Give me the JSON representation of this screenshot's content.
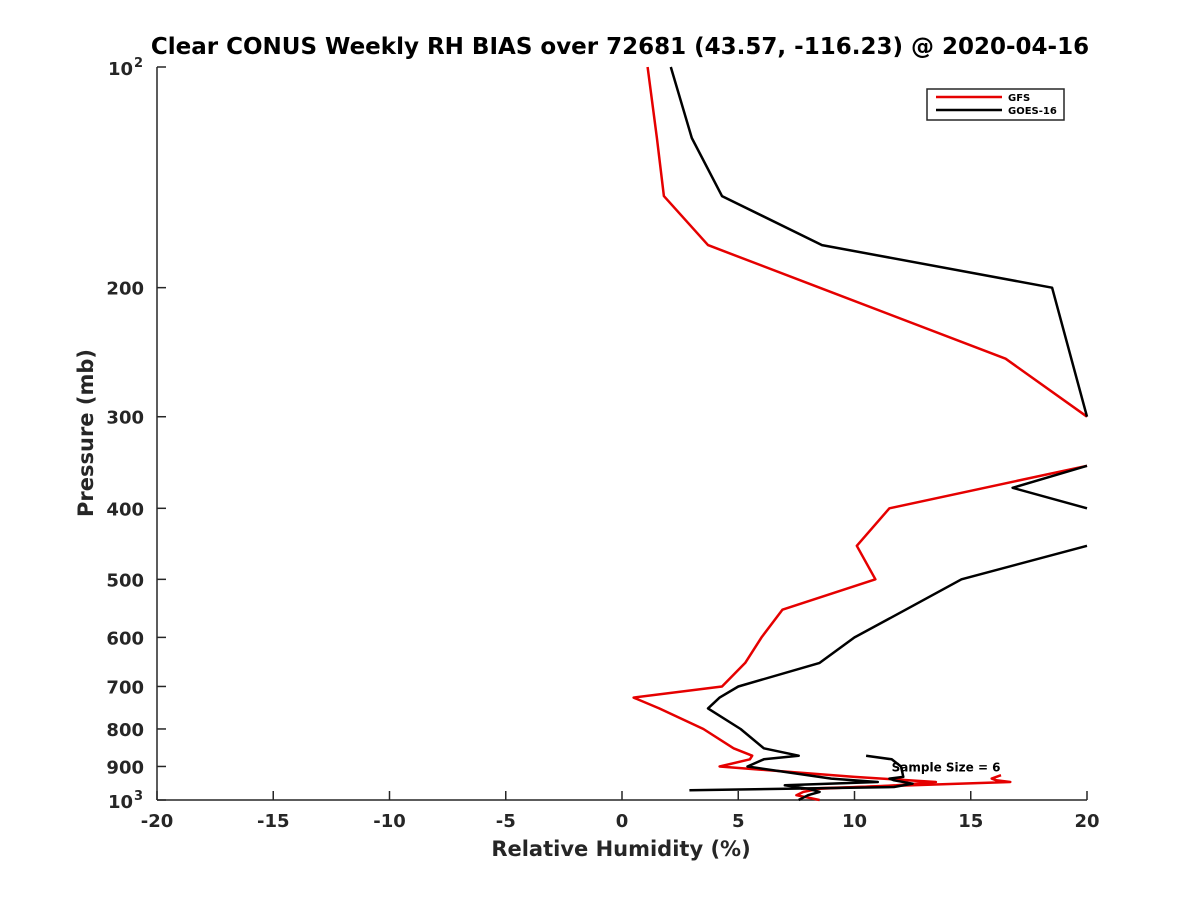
{
  "chart_data": {
    "type": "line",
    "title": "Clear CONUS Weekly RH BIAS over 72681 (43.57, -116.23) @ 2020-04-16",
    "xlabel": "Relative Humidity (%)",
    "ylabel": "Pressure (mb)",
    "xlim": [
      -20,
      20
    ],
    "ylim": [
      100,
      1000
    ],
    "y_scale": "log",
    "y_reversed": true,
    "grid": false,
    "legend_position": "top-right",
    "x_ticks": [
      "-20",
      "-15",
      "-10",
      "-5",
      "0",
      "5",
      "10",
      "15",
      "20"
    ],
    "y_ticks": [
      {
        "base": "10",
        "exp": "2",
        "value": 100
      },
      {
        "base": "200",
        "exp": "",
        "value": 200
      },
      {
        "base": "300",
        "exp": "",
        "value": 300
      },
      {
        "base": "400",
        "exp": "",
        "value": 400
      },
      {
        "base": "500",
        "exp": "",
        "value": 500
      },
      {
        "base": "600",
        "exp": "",
        "value": 600
      },
      {
        "base": "700",
        "exp": "",
        "value": 700
      },
      {
        "base": "800",
        "exp": "",
        "value": 800
      },
      {
        "base": "900",
        "exp": "",
        "value": 900
      },
      {
        "base": "10",
        "exp": "3",
        "value": 1000
      }
    ],
    "annotation": "Sample Size = 6",
    "annotation_at": {
      "x": 12.5,
      "p": 900
    },
    "series": [
      {
        "name": "GFS",
        "color": "#e50000",
        "segments": [
          [
            [
              1.1,
              100
            ],
            [
              1.5,
              125
            ],
            [
              1.8,
              150
            ],
            [
              3.7,
              175
            ],
            [
              8.5,
              200
            ],
            [
              16.5,
              250
            ],
            [
              20,
              300
            ]
          ],
          [
            [
              20,
              350
            ],
            [
              11.5,
              400
            ],
            [
              10.1,
              450
            ],
            [
              10.9,
              500
            ],
            [
              6.9,
              550
            ],
            [
              6.0,
              600
            ],
            [
              5.3,
              650
            ],
            [
              4.3,
              700
            ],
            [
              0.5,
              725
            ],
            [
              1.6,
              750
            ],
            [
              3.5,
              800
            ],
            [
              4.8,
              850
            ],
            [
              5.6,
              870
            ],
            [
              5.5,
              880
            ],
            [
              4.2,
              900
            ],
            [
              10.0,
              930
            ],
            [
              13.5,
              945
            ],
            [
              11.8,
              955
            ],
            [
              8.5,
              965
            ],
            [
              7.8,
              975
            ],
            [
              7.5,
              985
            ],
            [
              8.5,
              1000
            ]
          ],
          [
            [
              16.3,
              925
            ],
            [
              15.9,
              935
            ],
            [
              16.1,
              940
            ],
            [
              16.7,
              945
            ],
            [
              12.5,
              955
            ],
            [
              7.7,
              965
            ]
          ]
        ]
      },
      {
        "name": "GOES-16",
        "color": "#000000",
        "segments": [
          [
            [
              2.1,
              100
            ],
            [
              3.0,
              125
            ],
            [
              4.3,
              150
            ],
            [
              8.6,
              175
            ],
            [
              18.5,
              200
            ],
            [
              20,
              300
            ]
          ],
          [
            [
              20,
              350
            ],
            [
              16.8,
              375
            ],
            [
              20,
              400
            ]
          ],
          [
            [
              20,
              450
            ],
            [
              14.6,
              500
            ],
            [
              12.2,
              550
            ],
            [
              10.0,
              600
            ],
            [
              8.5,
              650
            ],
            [
              5.0,
              700
            ],
            [
              4.2,
              725
            ],
            [
              3.7,
              750
            ],
            [
              5.1,
              800
            ],
            [
              6.1,
              850
            ],
            [
              7.6,
              870
            ],
            [
              6.1,
              880
            ],
            [
              5.4,
              900
            ],
            [
              9.0,
              935
            ],
            [
              11.0,
              945
            ],
            [
              7.0,
              955
            ],
            [
              8.0,
              965
            ],
            [
              8.5,
              975
            ],
            [
              8.0,
              985
            ],
            [
              7.6,
              1000
            ]
          ],
          [
            [
              10.5,
              870
            ],
            [
              11.6,
              880
            ],
            [
              12.0,
              900
            ],
            [
              12.1,
              930
            ],
            [
              11.5,
              935
            ],
            [
              11.7,
              940
            ],
            [
              12.5,
              950
            ],
            [
              11.7,
              960
            ],
            [
              2.9,
              970
            ]
          ]
        ]
      }
    ]
  },
  "legend": {
    "items": [
      {
        "label": "GFS",
        "color": "#e50000"
      },
      {
        "label": "GOES-16",
        "color": "#000000"
      }
    ]
  }
}
